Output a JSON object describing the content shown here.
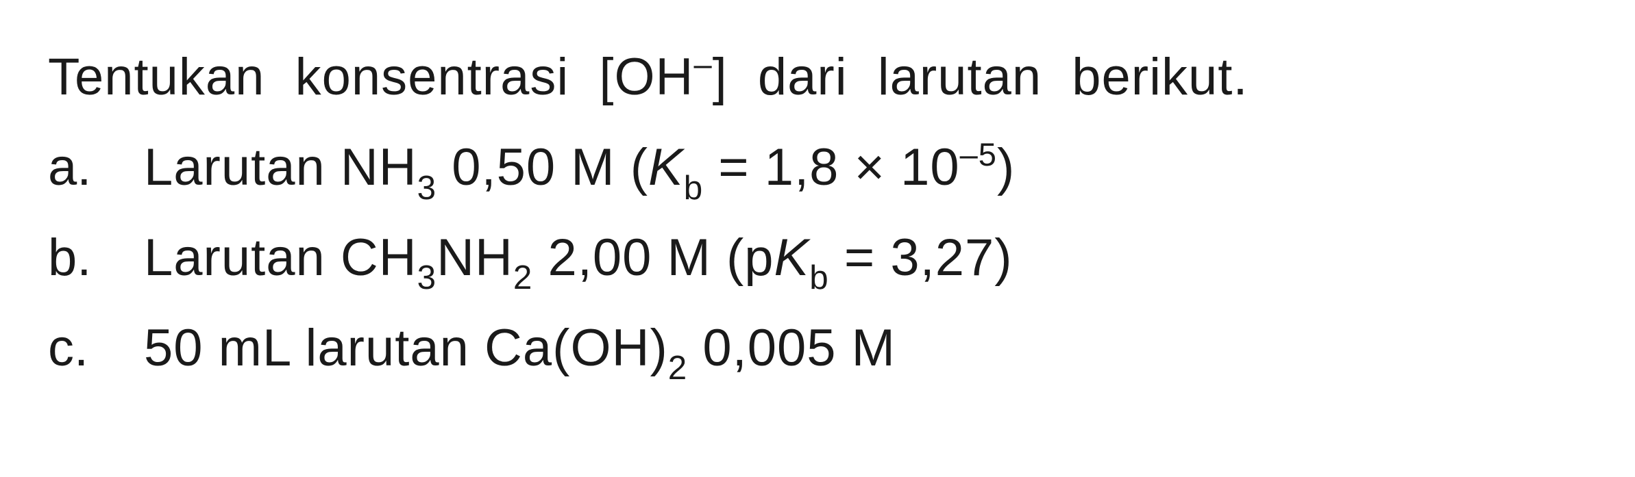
{
  "intro_pre": "Tentukan konsentrasi [OH",
  "intro_sup": "–",
  "intro_post": "] dari larutan berikut.",
  "items": [
    {
      "bullet": "a.",
      "pieces": [
        {
          "t": "text",
          "v": "Larutan NH"
        },
        {
          "t": "sub",
          "v": "3"
        },
        {
          "t": "text",
          "v": " 0,50 M ("
        },
        {
          "t": "ital",
          "v": "K"
        },
        {
          "t": "sub",
          "v": "b"
        },
        {
          "t": "text",
          "v": " = 1,8 × 10"
        },
        {
          "t": "sup",
          "v": "–5"
        },
        {
          "t": "text",
          "v": ")"
        }
      ]
    },
    {
      "bullet": "b.",
      "pieces": [
        {
          "t": "text",
          "v": "Larutan CH"
        },
        {
          "t": "sub",
          "v": "3"
        },
        {
          "t": "text",
          "v": "NH"
        },
        {
          "t": "sub",
          "v": "2"
        },
        {
          "t": "text",
          "v": " 2,00 M (p"
        },
        {
          "t": "ital",
          "v": "K"
        },
        {
          "t": "sub",
          "v": "b"
        },
        {
          "t": "text",
          "v": " = 3,27)"
        }
      ]
    },
    {
      "bullet": "c.",
      "pieces": [
        {
          "t": "text",
          "v": "50 mL larutan Ca(OH)"
        },
        {
          "t": "sub",
          "v": "2"
        },
        {
          "t": "text",
          "v": " 0,005 M"
        }
      ]
    }
  ]
}
